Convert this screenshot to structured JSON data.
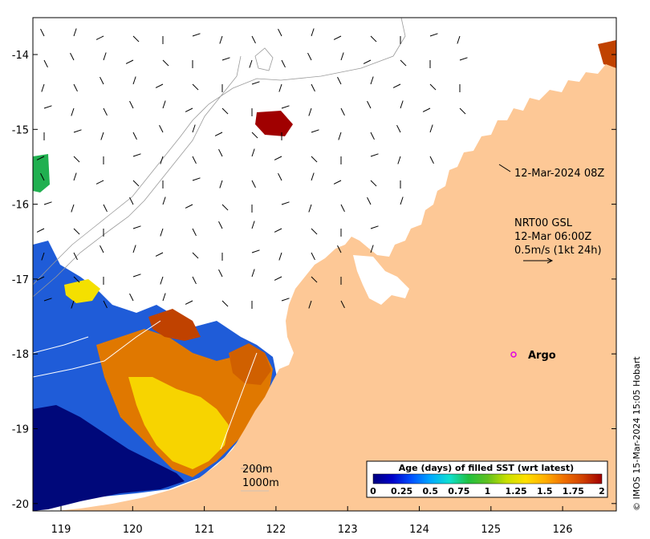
{
  "map": {
    "x_ticks": [
      "119",
      "120",
      "121",
      "122",
      "123",
      "124",
      "125",
      "126"
    ],
    "y_ticks": [
      "-14",
      "-15",
      "-16",
      "-17",
      "-18",
      "-19",
      "-20"
    ],
    "colors": {
      "land": "#fdc896",
      "ocean": "#ffffff",
      "frame": "#000000"
    }
  },
  "annotations": {
    "sst_time": "12-Mar-2024 08Z",
    "current_source": "NRT00 GSL",
    "current_time": "12-Mar 06:00Z",
    "current_scale": "0.5m/s (1kt 24h)",
    "argo_label": "Argo",
    "contour_200": "200m",
    "contour_1000": "1000m"
  },
  "colorbar": {
    "title": "Age (days) of filled SST (wrt latest)",
    "ticks": [
      "0",
      "0.25",
      "0.5",
      "0.75",
      "1",
      "1.25",
      "1.5",
      "1.75",
      "2"
    ],
    "colors": [
      "#00007f",
      "#0000c8",
      "#0050ff",
      "#00a8ff",
      "#10e0d0",
      "#20c040",
      "#60c020",
      "#c8e000",
      "#ffe000",
      "#ffb000",
      "#f07000",
      "#d04000",
      "#a00000"
    ]
  },
  "credit": "© IMOS 15-Mar-2024 15:05 Hobart"
}
